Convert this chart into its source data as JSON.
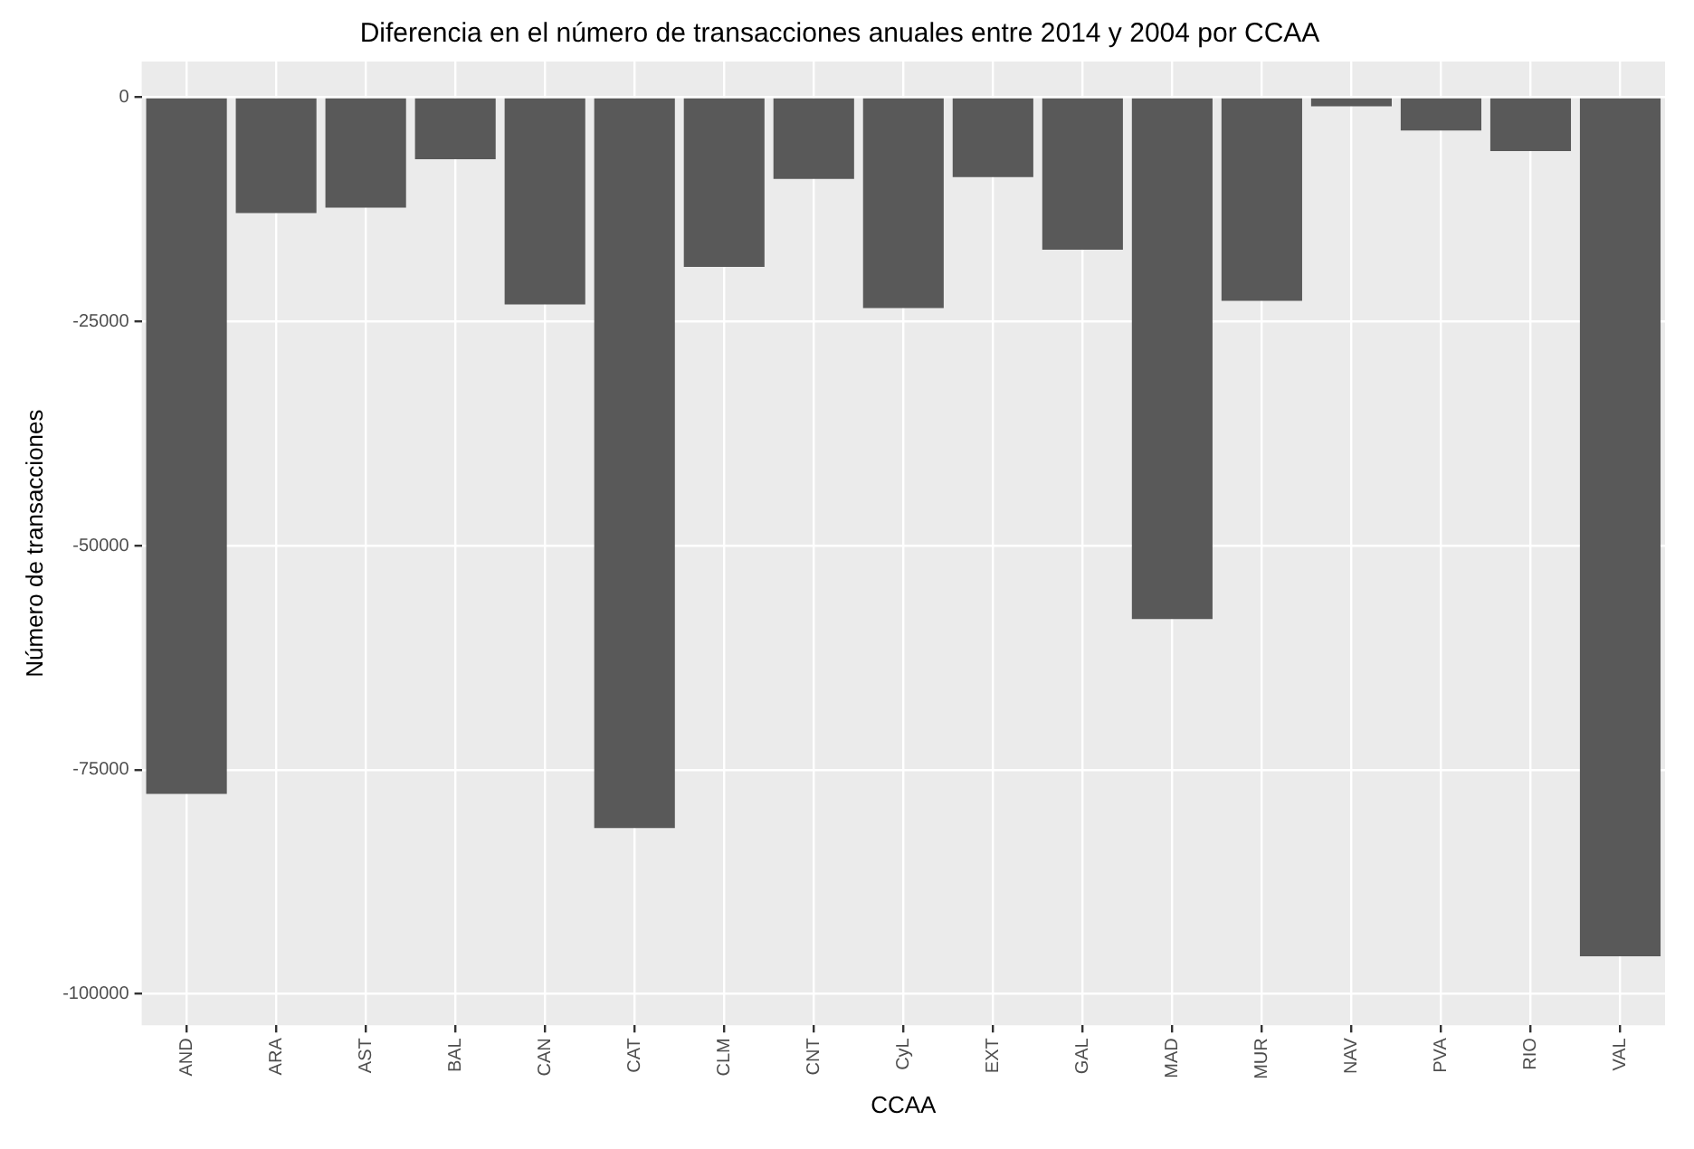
{
  "chart_data": {
    "type": "bar",
    "title": "Diferencia en el número de transacciones anuales entre 2014 y 2004 por CCAA",
    "xlabel": "CCAA",
    "ylabel": "Número de transacciones",
    "categories": [
      "AND",
      "ARA",
      "AST",
      "BAL",
      "CAN",
      "CAT",
      "CLM",
      "CNT",
      "CyL",
      "EXT",
      "GAL",
      "MAD",
      "MUR",
      "NAV",
      "PVA",
      "RIO",
      "VAL"
    ],
    "values": [
      -77700,
      -12900,
      -12300,
      -6900,
      -23100,
      -81500,
      -18900,
      -9100,
      -23500,
      -8900,
      -17000,
      -58200,
      -22700,
      -1000,
      -3700,
      -6000,
      -95800
    ],
    "color": "#595959",
    "ylim": [
      -103500,
      4000
    ],
    "yticks": [
      -100000,
      -75000,
      -50000,
      -25000,
      0
    ],
    "grid": true
  }
}
